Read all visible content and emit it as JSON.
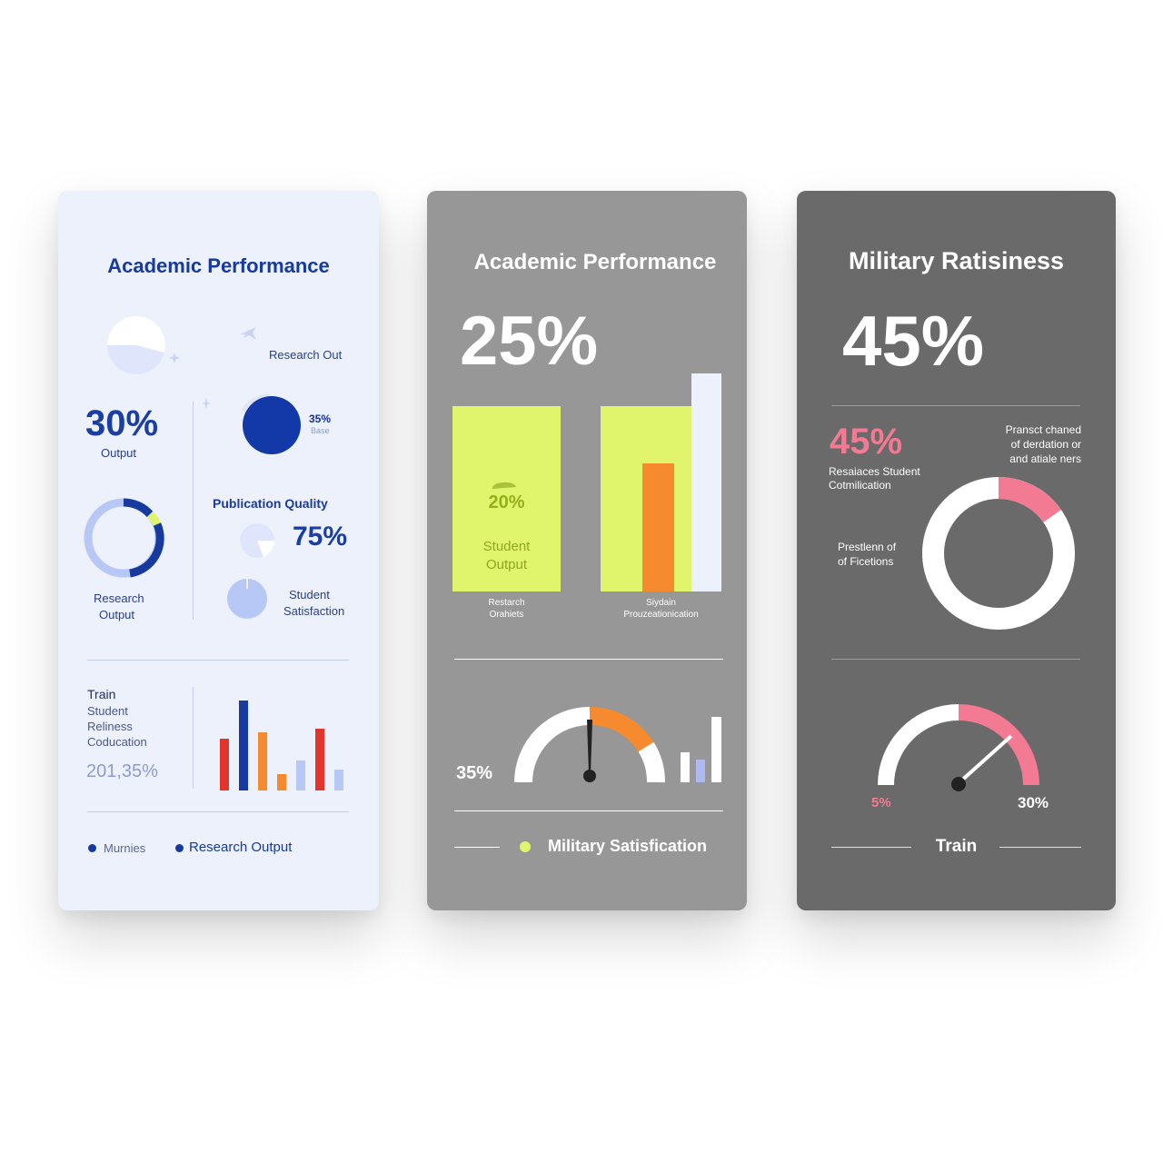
{
  "colors": {
    "navy": "#173a9e",
    "navy_text": "#14339a",
    "light_blue": "#b8c8f6",
    "lime": "#e0f56c",
    "orange": "#f58a2e",
    "pink": "#f27a92",
    "red": "#e5342b"
  },
  "card1": {
    "title": "Academic Performance",
    "research_out_label": "Research Out",
    "pct_small_value": "35%",
    "pct_small_sub": "Base",
    "output_value": "30%",
    "output_label": "Output",
    "publication_label": "Publication Quality",
    "publication_value": "75%",
    "research_label_1": "Research",
    "research_label_2": "Output",
    "satisfaction_label_1": "Student",
    "satisfaction_label_2": "Satisfaction",
    "train_lines": [
      "Train",
      "Student",
      "Reliness",
      "Coducation"
    ],
    "train_value": "201,35%",
    "bar_values": [
      55,
      95,
      62,
      17,
      32,
      65,
      22
    ],
    "legend": [
      "Murnies",
      "Research Output"
    ]
  },
  "card2": {
    "title": "Academic Performance",
    "big_value": "25%",
    "box1_value": "20%",
    "box1_label_1": "Student",
    "box1_label_2": "Output",
    "box1_caption_1": "Restarch",
    "box1_caption_2": "Orahiets",
    "box2_caption_1": "Siydain",
    "box2_caption_2": "Prouzeationication",
    "gauge_value": "35%",
    "legend_label": "Military Satisfication"
  },
  "card3": {
    "title": "Military Ratisiness",
    "big_value": "45%",
    "sub_value": "45%",
    "sub_label_1": "Resaiaces Student",
    "sub_label_2": "Cotmilication",
    "note_lines": [
      "Pransct chaned",
      "of  derdation or",
      "and atiale ners"
    ],
    "ring_label_1": "Prestlenn of",
    "ring_label_2": "of Ficetions",
    "gauge_min": "5%",
    "gauge_max": "30%",
    "bottom_label": "Train"
  }
}
